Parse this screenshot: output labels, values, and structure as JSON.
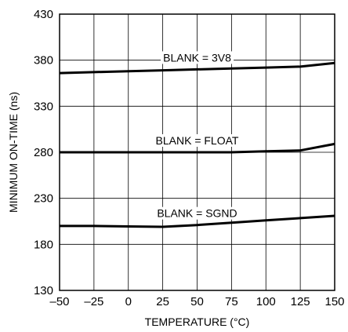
{
  "chart_data": {
    "type": "line",
    "title": "",
    "xlabel": "TEMPERATURE (°C)",
    "ylabel": "MINIMUM ON-TIME (ns)",
    "xlim": [
      -50,
      150
    ],
    "ylim": [
      130,
      430
    ],
    "xticks": [
      "–50",
      "–25",
      "0",
      "25",
      "50",
      "75",
      "100",
      "125",
      "150"
    ],
    "yticks": [
      "130",
      "180",
      "230",
      "280",
      "330",
      "380",
      "430"
    ],
    "grid": true,
    "series": [
      {
        "name": "BLANK = 3V8",
        "x": [
          -50,
          -25,
          0,
          25,
          50,
          75,
          100,
          125,
          150
        ],
        "y": [
          366,
          367,
          368,
          369,
          370,
          371,
          372,
          373,
          377
        ]
      },
      {
        "name": "BLANK = FLOAT",
        "x": [
          -50,
          -25,
          0,
          25,
          50,
          75,
          100,
          125,
          150
        ],
        "y": [
          280,
          280,
          280,
          280,
          280,
          280,
          281,
          282,
          289
        ]
      },
      {
        "name": "BLANK = SGND",
        "x": [
          -50,
          -25,
          0,
          25,
          50,
          75,
          100,
          125,
          150
        ],
        "y": [
          200,
          200,
          199.5,
          199,
          201,
          203.5,
          206,
          208.5,
          211
        ]
      }
    ]
  }
}
